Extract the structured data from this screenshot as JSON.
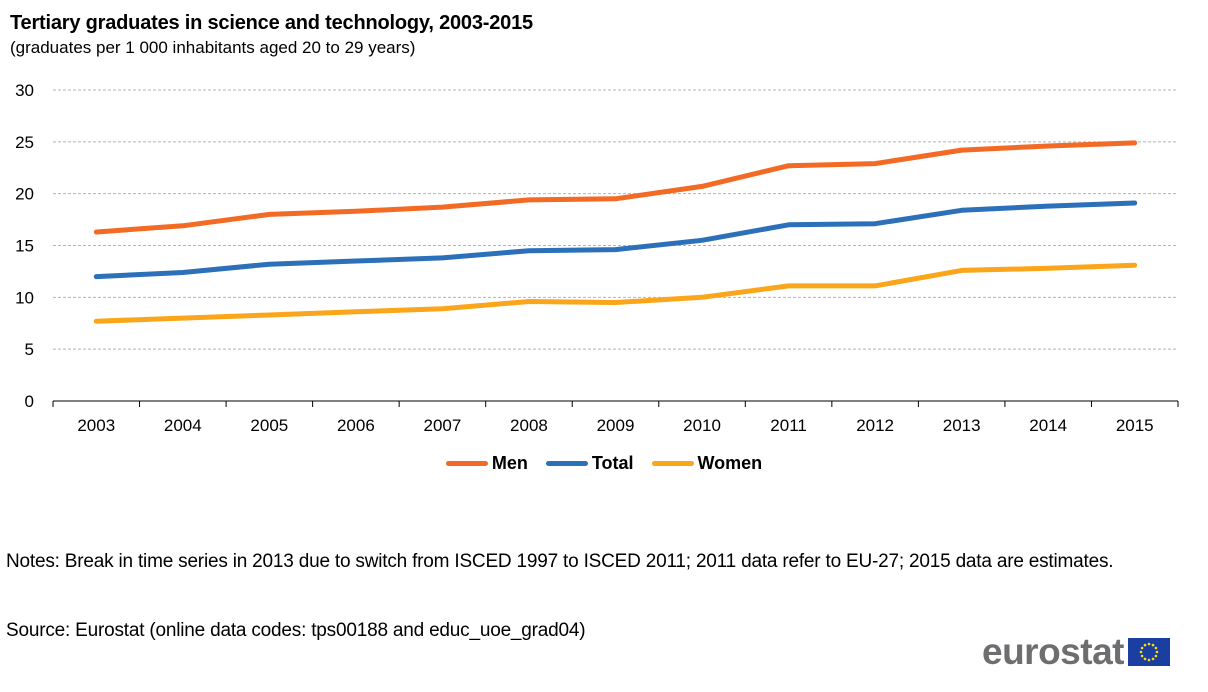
{
  "chart_data": {
    "type": "line",
    "title": "Tertiary graduates in science and technology, 2003-2015",
    "subtitle": "(graduates per 1 000 inhabitants  aged 20 to 29 years)",
    "xlabel": "",
    "ylabel": "",
    "ylim": [
      0,
      30
    ],
    "yticks": [
      0,
      5,
      10,
      15,
      20,
      25,
      30
    ],
    "grid": true,
    "legend_position": "bottom-center",
    "categories": [
      "2003",
      "2004",
      "2005",
      "2006",
      "2007",
      "2008",
      "2009",
      "2010",
      "2011",
      "2012",
      "2013",
      "2014",
      "2015"
    ],
    "series": [
      {
        "name": "Men",
        "color": "#f26a24",
        "values": [
          16.3,
          16.9,
          18.0,
          18.3,
          18.7,
          19.4,
          19.5,
          20.7,
          22.7,
          22.9,
          24.2,
          24.6,
          24.9
        ]
      },
      {
        "name": "Total",
        "color": "#2b70b8",
        "values": [
          12.0,
          12.4,
          13.2,
          13.5,
          13.8,
          14.5,
          14.6,
          15.5,
          17.0,
          17.1,
          18.4,
          18.8,
          19.1
        ]
      },
      {
        "name": "Women",
        "color": "#faa51a",
        "values": [
          7.7,
          8.0,
          8.3,
          8.6,
          8.9,
          9.6,
          9.5,
          10.0,
          11.1,
          11.1,
          12.6,
          12.8,
          13.1
        ]
      }
    ]
  },
  "notes": "Notes: Break in time series in 2013 due to switch from ISCED 1997 to ISCED 2011; 2011 data refer to EU-27; 2015 data are estimates.",
  "source": "Source: Eurostat (online data codes: tps00188 and educ_uoe_grad04)",
  "logo": {
    "text": "eurostat",
    "icon": "eu-flag-icon"
  }
}
